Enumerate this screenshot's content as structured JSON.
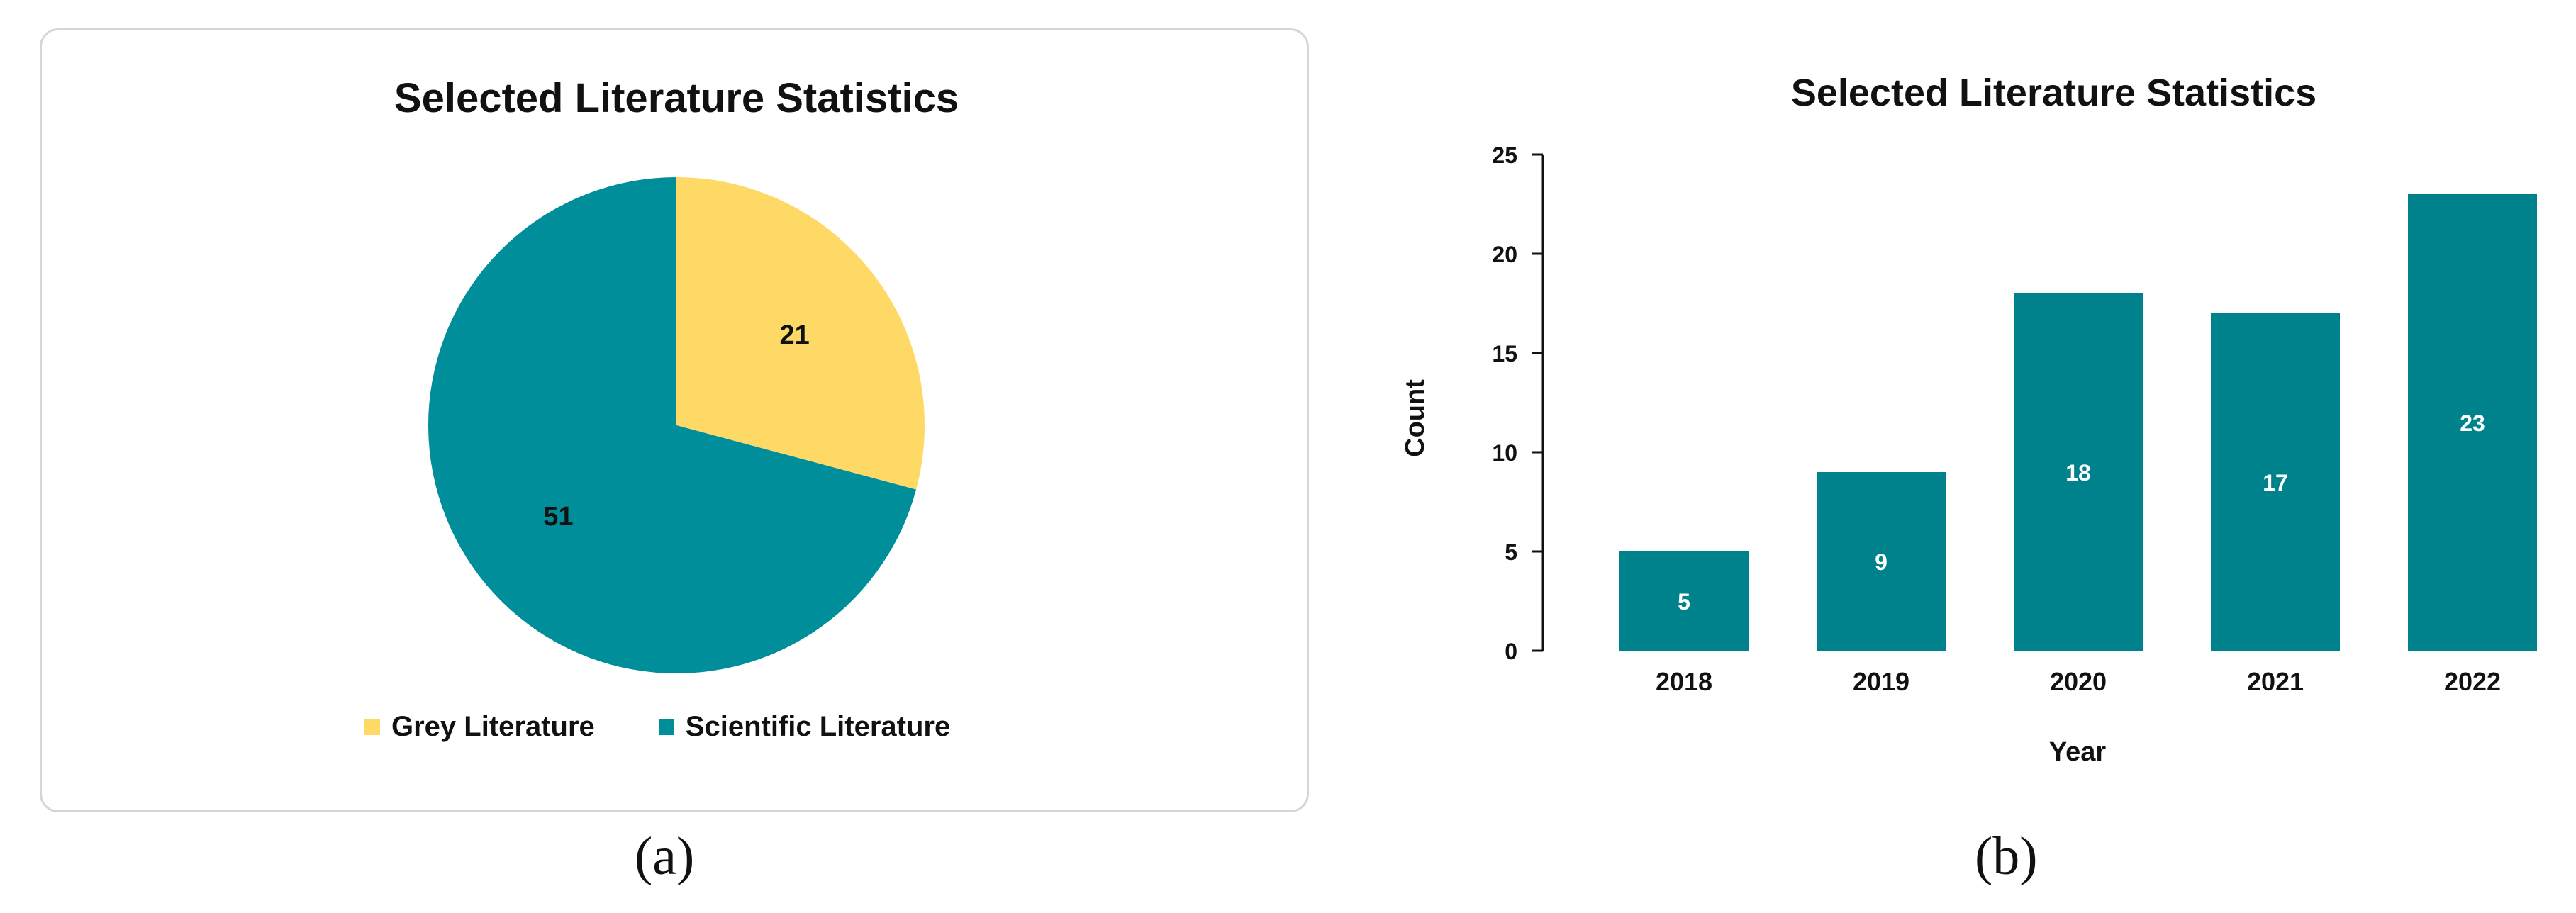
{
  "panel_a": {
    "caption": "(a)",
    "chart_data": {
      "type": "pie",
      "title": "Selected Literature Statistics",
      "categories": [
        "Grey Literature",
        "Scientific Literature"
      ],
      "values": [
        21,
        51
      ],
      "colors": [
        "#FFD966",
        "#008E9A"
      ],
      "legend_position": "bottom"
    }
  },
  "panel_b": {
    "caption": "(b)",
    "chart_data": {
      "type": "bar",
      "title": "Selected Literature Statistics",
      "categories": [
        "2018",
        "2019",
        "2020",
        "2021",
        "2022"
      ],
      "values": [
        5,
        9,
        18,
        17,
        23
      ],
      "xlabel": "Year",
      "ylabel": "Count",
      "ylim": [
        0,
        25
      ],
      "yticks": [
        0,
        5,
        10,
        15,
        20,
        25
      ],
      "color": "#00828C",
      "grid": false
    }
  }
}
